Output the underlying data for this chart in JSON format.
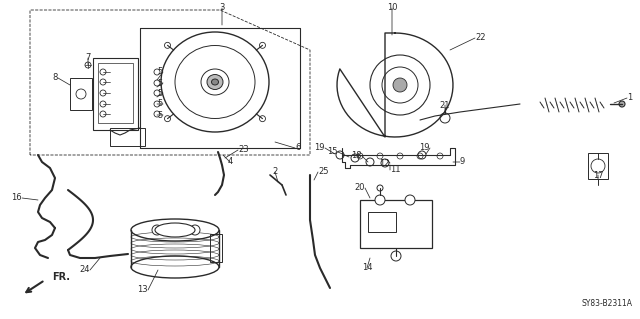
{
  "bg_color": "#ffffff",
  "diagram_color": "#333333",
  "ref_code": "SY83-B2311A",
  "fr_label": "FR.",
  "figsize": [
    6.4,
    3.19
  ],
  "dpi": 100,
  "line_color": "#2a2a2a",
  "label_fontsize": 6.0,
  "ref_fontsize": 5.5
}
